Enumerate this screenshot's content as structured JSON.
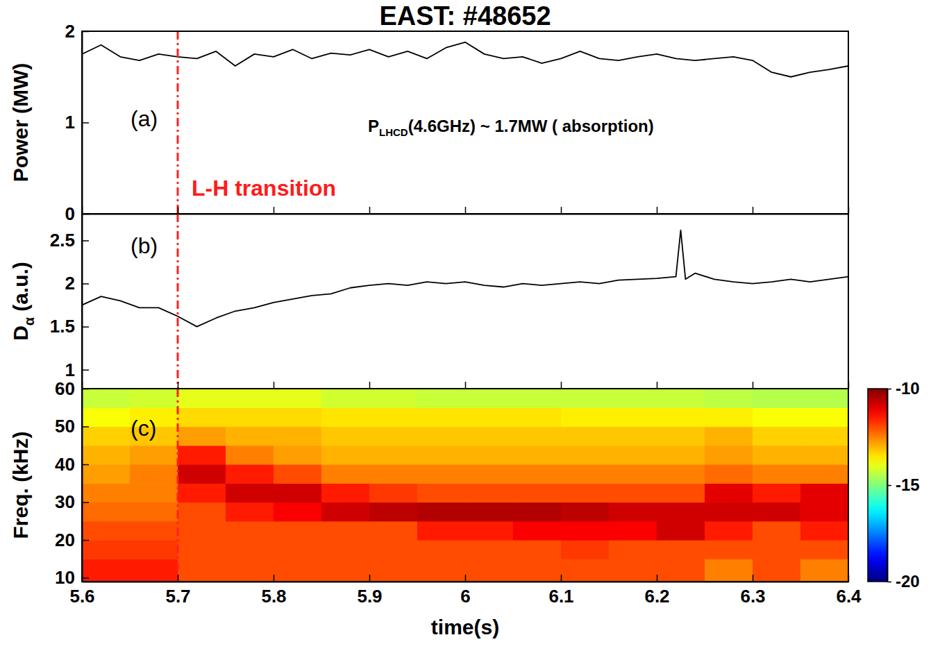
{
  "chart_data": [
    {
      "type": "line",
      "title": "EAST: #48652",
      "y_label": "Power (MW)",
      "panel_label": "(a)",
      "annotation": [
        "P",
        "LHCD",
        "(4.6GHz) ~ 1.7MW ( absorption)"
      ],
      "vline": 5.7,
      "vline_label": "L-H transition",
      "x": [
        5.6,
        5.62,
        5.64,
        5.66,
        5.68,
        5.7,
        5.72,
        5.74,
        5.76,
        5.78,
        5.8,
        5.82,
        5.84,
        5.86,
        5.88,
        5.9,
        5.92,
        5.94,
        5.96,
        5.98,
        6,
        6.02,
        6.04,
        6.06,
        6.08,
        6.1,
        6.12,
        6.14,
        6.16,
        6.18,
        6.2,
        6.22,
        6.24,
        6.26,
        6.28,
        6.3,
        6.32,
        6.34,
        6.36,
        6.38,
        6.4
      ],
      "series": [
        {
          "color": "#000000",
          "values": [
            1.75,
            1.85,
            1.72,
            1.68,
            1.75,
            1.72,
            1.7,
            1.78,
            1.62,
            1.75,
            1.72,
            1.8,
            1.7,
            1.76,
            1.74,
            1.8,
            1.72,
            1.78,
            1.7,
            1.82,
            1.88,
            1.75,
            1.7,
            1.72,
            1.65,
            1.7,
            1.78,
            1.7,
            1.68,
            1.72,
            1.75,
            1.7,
            1.68,
            1.7,
            1.72,
            1.68,
            1.55,
            1.5,
            1.55,
            1.58,
            1.62
          ]
        }
      ],
      "xlim": [
        5.6,
        6.4
      ],
      "xticks": [
        5.6,
        5.7,
        5.8,
        5.9,
        6,
        6.1,
        6.2,
        6.3,
        6.4
      ],
      "ylim": [
        0,
        2
      ],
      "yticks": [
        0,
        1,
        2
      ],
      "tick_labels": "y"
    },
    {
      "type": "line",
      "y_label": [
        "D",
        "α",
        "(a.u.)"
      ],
      "panel_label": "(b)",
      "vline": 5.7,
      "x": [
        5.6,
        5.62,
        5.64,
        5.66,
        5.68,
        5.7,
        5.72,
        5.74,
        5.76,
        5.78,
        5.8,
        5.82,
        5.84,
        5.86,
        5.88,
        5.9,
        5.92,
        5.94,
        5.96,
        5.98,
        6,
        6.02,
        6.04,
        6.06,
        6.08,
        6.1,
        6.12,
        6.14,
        6.16,
        6.18,
        6.2,
        6.22,
        6.225,
        6.23,
        6.24,
        6.26,
        6.28,
        6.3,
        6.32,
        6.34,
        6.36,
        6.38,
        6.4
      ],
      "series": [
        {
          "color": "#000000",
          "values": [
            1.75,
            1.85,
            1.8,
            1.72,
            1.72,
            1.62,
            1.5,
            1.6,
            1.68,
            1.72,
            1.78,
            1.82,
            1.86,
            1.88,
            1.95,
            1.98,
            2,
            1.98,
            2.02,
            2,
            2.02,
            1.98,
            1.96,
            2,
            1.98,
            2,
            2.02,
            2,
            2.04,
            2.05,
            2.06,
            2.08,
            2.62,
            2.05,
            2.12,
            2.05,
            2.02,
            2,
            2.02,
            2.05,
            2.02,
            2.05,
            2.08
          ]
        }
      ],
      "xlim": [
        5.6,
        6.4
      ],
      "xticks": [
        5.6,
        5.7,
        5.8,
        5.9,
        6,
        6.1,
        6.2,
        6.3,
        6.4
      ],
      "ylim": [
        0.78,
        2.81
      ],
      "yticks": [
        1,
        1.5,
        2,
        2.5
      ],
      "tick_labels": "y"
    },
    {
      "type": "heatmap",
      "x_label": "time(s)",
      "y_label": "Freq. (kHz)",
      "panel_label": "(c)",
      "vline": 5.7,
      "x_bins": [
        5.6,
        5.65,
        5.7,
        5.75,
        5.8,
        5.85,
        5.9,
        5.95,
        6,
        6.05,
        6.1,
        6.15,
        6.2,
        6.25,
        6.3,
        6.35,
        6.4
      ],
      "y_bins": [
        9,
        15,
        20,
        25,
        30,
        35,
        40,
        45,
        50,
        55,
        60
      ],
      "z": [
        [
          -11.5,
          -11.5,
          -12,
          -12,
          -12,
          -12,
          -12,
          -12,
          -12,
          -12,
          -12,
          -12,
          -12,
          -12.5,
          -12,
          -12.5
        ],
        [
          -11.8,
          -11.8,
          -12,
          -12,
          -12,
          -12,
          -12,
          -12,
          -12,
          -12,
          -11.8,
          -12,
          -12,
          -12,
          -12,
          -12
        ],
        [
          -12,
          -12,
          -12,
          -12,
          -12,
          -12,
          -12,
          -11.5,
          -11.5,
          -11.2,
          -11.2,
          -11.2,
          -10.8,
          -11.5,
          -12,
          -11.5
        ],
        [
          -12.3,
          -12.3,
          -12,
          -11.5,
          -11.2,
          -10.8,
          -10.6,
          -10.5,
          -10.5,
          -10.5,
          -10.6,
          -10.8,
          -10.8,
          -10.8,
          -10.8,
          -11
        ],
        [
          -12.5,
          -12.5,
          -11.5,
          -10.8,
          -10.8,
          -11.5,
          -11.8,
          -12,
          -12,
          -12,
          -12,
          -12,
          -12,
          -11,
          -11.5,
          -11
        ],
        [
          -12.8,
          -12.5,
          -10.8,
          -11.5,
          -12,
          -12.5,
          -12.5,
          -12.5,
          -12.5,
          -12.5,
          -12.5,
          -12.5,
          -12.5,
          -12.3,
          -12.5,
          -12.5
        ],
        [
          -13,
          -12.8,
          -11.5,
          -12.5,
          -12.8,
          -13,
          -13,
          -13,
          -13,
          -13,
          -13,
          -13,
          -13,
          -12.8,
          -13,
          -13
        ],
        [
          -13.3,
          -13.2,
          -12.8,
          -13,
          -13,
          -13.2,
          -13.2,
          -13.2,
          -13.2,
          -13.2,
          -13.2,
          -13.2,
          -13.2,
          -13,
          -13.3,
          -13.3
        ],
        [
          -13.8,
          -13.6,
          -13.4,
          -13.4,
          -13.4,
          -13.5,
          -13.5,
          -13.5,
          -13.5,
          -13.5,
          -13.6,
          -13.6,
          -13.6,
          -13.6,
          -13.8,
          -13.8
        ],
        [
          -14.3,
          -14.2,
          -14,
          -14,
          -14,
          -14.2,
          -14.2,
          -14.3,
          -14.3,
          -14.3,
          -14.3,
          -14.3,
          -14.3,
          -14.4,
          -14.5,
          -14.5
        ]
      ],
      "zlim": [
        -20,
        -10
      ],
      "zticks": [
        -10,
        -15,
        -20
      ],
      "xlim": [
        5.6,
        6.4
      ],
      "xticks": [
        5.6,
        5.7,
        5.8,
        5.9,
        6,
        6.1,
        6.2,
        6.3,
        6.4
      ],
      "ylim": [
        9,
        60
      ],
      "yticks": [
        10,
        20,
        30,
        40,
        50,
        60
      ]
    }
  ]
}
